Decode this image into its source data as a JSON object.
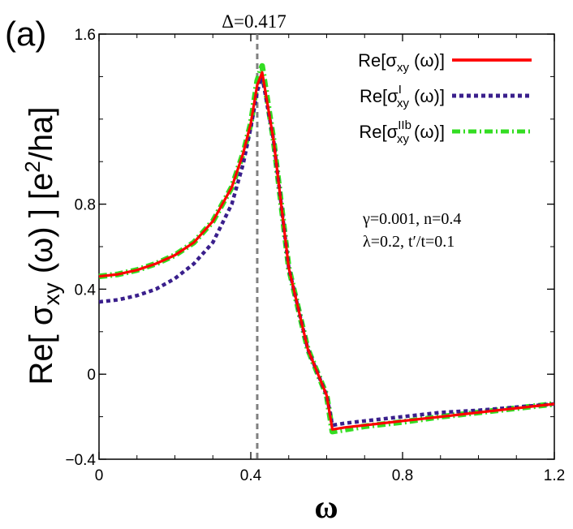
{
  "panel_label": "(a)",
  "chart_data": {
    "type": "line",
    "title": "",
    "xlabel": "ω",
    "ylabel": "Re[ σxy (ω) ]  [e²/ha]",
    "ylabel_parts": {
      "pre": "Re[ σ",
      "sub": "xy",
      "mid": " (ω) ]  [e",
      "sup": "2",
      "post": "/ha]"
    },
    "xlim": [
      0,
      1.2
    ],
    "ylim": [
      -0.4,
      1.6
    ],
    "xticks": [
      {
        "value": 0,
        "label": "0"
      },
      {
        "value": 0.4,
        "label": "0.4"
      },
      {
        "value": 0.8,
        "label": "0.8"
      },
      {
        "value": 1.2,
        "label": "1.2"
      }
    ],
    "yticks": [
      {
        "value": -0.4,
        "label": "−0.4"
      },
      {
        "value": 0,
        "label": "0"
      },
      {
        "value": 0.4,
        "label": "0.4"
      },
      {
        "value": 0.8,
        "label": "0.8"
      },
      {
        "value": 1.6,
        "label": "1.6"
      }
    ],
    "vline": {
      "x": 0.417,
      "label": "Δ=0.417",
      "color": "#808080"
    },
    "annotation_lines": [
      "γ=0.001, n=0.4",
      "λ=0.2, t′/t=0.1"
    ],
    "legend_position": "top-right",
    "series": [
      {
        "legend": {
          "pre": "Re[σ",
          "sup": "",
          "sub": "xy",
          "post": " (ω)]"
        },
        "color": "#ff0000",
        "style": "solid",
        "x": [
          0,
          0.05,
          0.1,
          0.15,
          0.2,
          0.25,
          0.3,
          0.35,
          0.38,
          0.4,
          0.417,
          0.43,
          0.46,
          0.5,
          0.55,
          0.6,
          0.615,
          0.65,
          0.7,
          0.8,
          0.9,
          1.0,
          1.1,
          1.2
        ],
        "y": [
          0.46,
          0.47,
          0.49,
          0.52,
          0.56,
          0.62,
          0.72,
          0.88,
          1.04,
          1.18,
          1.36,
          1.42,
          1.1,
          0.5,
          0.12,
          -0.1,
          -0.26,
          -0.25,
          -0.24,
          -0.22,
          -0.2,
          -0.18,
          -0.16,
          -0.14
        ]
      },
      {
        "legend": {
          "pre": "Re[σ",
          "sup": "I",
          "sub": "xy",
          "post": " (ω)]"
        },
        "color": "#3a1f8c",
        "style": "dashed",
        "x": [
          0,
          0.05,
          0.1,
          0.15,
          0.2,
          0.25,
          0.3,
          0.35,
          0.38,
          0.4,
          0.417,
          0.43,
          0.46,
          0.5,
          0.55,
          0.6,
          0.615,
          0.65,
          0.7,
          0.8,
          0.9,
          1.0,
          1.1,
          1.2
        ],
        "y": [
          0.34,
          0.35,
          0.37,
          0.4,
          0.45,
          0.52,
          0.62,
          0.8,
          0.99,
          1.16,
          1.33,
          1.4,
          1.1,
          0.5,
          0.12,
          -0.1,
          -0.24,
          -0.23,
          -0.22,
          -0.2,
          -0.18,
          -0.17,
          -0.155,
          -0.14
        ]
      },
      {
        "legend": {
          "pre": "Re[σ",
          "sup": "IIb",
          "sub": "xy",
          "post": " (ω)]"
        },
        "color": "#33dd22",
        "style": "dashdot",
        "x": [
          0,
          0.05,
          0.1,
          0.15,
          0.2,
          0.25,
          0.3,
          0.35,
          0.38,
          0.4,
          0.417,
          0.43,
          0.46,
          0.5,
          0.55,
          0.6,
          0.615,
          0.65,
          0.7,
          0.8,
          0.9,
          1.0,
          1.1,
          1.2
        ],
        "y": [
          0.46,
          0.47,
          0.49,
          0.52,
          0.56,
          0.62,
          0.72,
          0.88,
          1.04,
          1.18,
          1.38,
          1.45,
          1.1,
          0.5,
          0.12,
          -0.1,
          -0.27,
          -0.26,
          -0.245,
          -0.225,
          -0.2,
          -0.18,
          -0.16,
          -0.14
        ]
      }
    ]
  }
}
